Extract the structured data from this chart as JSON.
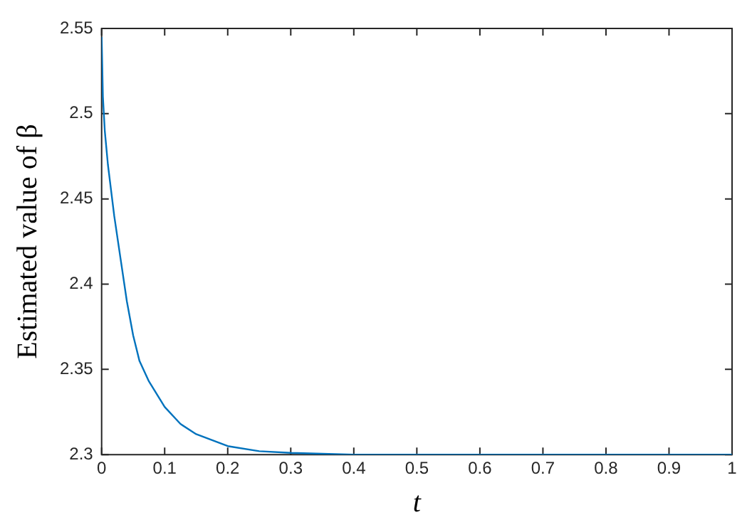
{
  "chart_data": {
    "type": "line",
    "xlabel": "t",
    "ylabel": "Estimated value of β",
    "x": [
      0,
      0.002,
      0.005,
      0.01,
      0.02,
      0.03,
      0.04,
      0.05,
      0.06,
      0.075,
      0.1,
      0.125,
      0.15,
      0.2,
      0.25,
      0.3,
      0.4,
      0.5,
      0.7,
      1
    ],
    "series": [
      {
        "color": "#0072bd",
        "values": [
          2.545,
          2.51,
          2.49,
          2.47,
          2.44,
          2.415,
          2.39,
          2.37,
          2.355,
          2.343,
          2.328,
          2.318,
          2.312,
          2.305,
          2.302,
          2.301,
          2.3,
          2.3,
          2.3,
          2.3
        ]
      }
    ],
    "xlim": [
      0,
      1
    ],
    "xticks": [
      0,
      0.1,
      0.2,
      0.3,
      0.4,
      0.5,
      0.6,
      0.7,
      0.8,
      0.9,
      1
    ],
    "ylim": [
      2.3,
      2.55
    ],
    "yticks": [
      2.3,
      2.35,
      2.4,
      2.45,
      2.5,
      2.55
    ],
    "grid": false,
    "legend": false,
    "marker": "none",
    "line_style": "solid"
  }
}
